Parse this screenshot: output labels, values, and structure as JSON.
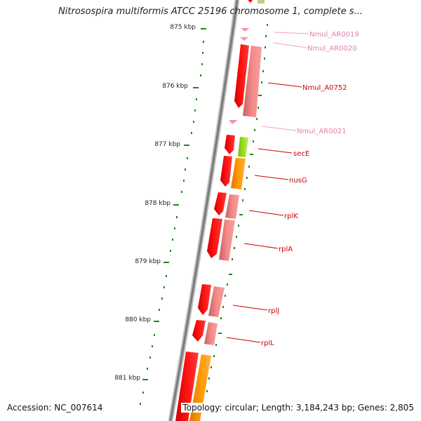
{
  "title": "Nitrosospira multiformis ATCC 25196 chromosome 1, complete s...",
  "scale_ticks": [
    "875 kbp",
    "876 kbp",
    "877 kbp",
    "878 kbp",
    "879 kbp",
    "880 kbp",
    "881 kbp"
  ],
  "features": [
    {
      "label": "Nmul_AR0019",
      "kind": "RNA"
    },
    {
      "label": "Nmul_AR0020",
      "kind": "RNA"
    },
    {
      "label": "Nmul_A0752",
      "kind": "CDS"
    },
    {
      "label": "Nmul_AR0021",
      "kind": "RNA"
    },
    {
      "label": "secE",
      "kind": "CDS"
    },
    {
      "label": "nusG",
      "kind": "CDS"
    },
    {
      "label": "rplK",
      "kind": "CDS"
    },
    {
      "label": "rplA",
      "kind": "CDS"
    },
    {
      "label": "rplJ",
      "kind": "CDS"
    },
    {
      "label": "rplL",
      "kind": "CDS"
    }
  ],
  "footer": {
    "accession": "Accession: NC_007614",
    "summary": "Topology: circular; Length: 3,184,243 bp; Genes: 2,805"
  },
  "colors": {
    "cds": "#ff0000",
    "rna": "#f490c8",
    "cds_label": "#cc0000",
    "rna_label": "#e080b0",
    "backbone": "#888888",
    "tick": "#1a8a1a",
    "pale_red": "#f08080",
    "orange": "#ff9900",
    "lime": "#99dd22",
    "olive": "#c8c890"
  }
}
